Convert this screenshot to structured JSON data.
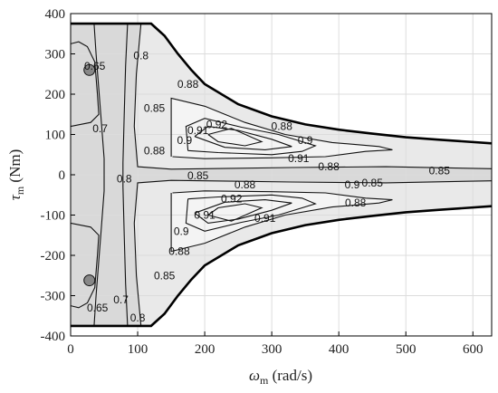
{
  "chart_data": {
    "type": "contour",
    "xlabel": "ω",
    "xlabel_sub": "m",
    "xlabel_unit": " (rad/s)",
    "ylabel": "τ",
    "ylabel_sub": "m",
    "ylabel_unit": " (Nm)",
    "xlim": [
      0,
      628
    ],
    "ylim": [
      -400,
      400
    ],
    "xticks": [
      0,
      100,
      200,
      300,
      400,
      500,
      600
    ],
    "yticks": [
      -400,
      -300,
      -200,
      -100,
      0,
      100,
      200,
      300,
      400
    ],
    "xtick_labels": [
      "0",
      "100",
      "200",
      "300",
      "400",
      "500",
      "600"
    ],
    "ytick_labels": [
      "-400",
      "-300",
      "-200",
      "-100",
      "0",
      "100",
      "200",
      "300",
      "400"
    ],
    "grid": true,
    "envelope": {
      "max_torque": 375,
      "corner_speed": 120,
      "upper": [
        [
          0,
          375
        ],
        [
          120,
          375
        ],
        [
          140,
          345
        ],
        [
          160,
          300
        ],
        [
          180,
          260
        ],
        [
          200,
          225
        ],
        [
          250,
          175
        ],
        [
          300,
          145
        ],
        [
          350,
          125
        ],
        [
          400,
          112
        ],
        [
          450,
          102
        ],
        [
          500,
          93
        ],
        [
          550,
          87
        ],
        [
          628,
          78
        ]
      ]
    },
    "fill_regions": [
      {
        "level": "<0.7",
        "color": "#a6a6a6",
        "polygon": [
          [
            0,
            375
          ],
          [
            35,
            375
          ],
          [
            38,
            300
          ],
          [
            45,
            150
          ],
          [
            50,
            40
          ],
          [
            50,
            -40
          ],
          [
            45,
            -150
          ],
          [
            38,
            -300
          ],
          [
            35,
            -375
          ],
          [
            0,
            -375
          ]
        ]
      },
      {
        "level": "0.7-0.8",
        "color": "#c2c2c2",
        "polygon": [
          [
            0,
            375
          ],
          [
            85,
            375
          ],
          [
            82,
            270
          ],
          [
            80,
            150
          ],
          [
            78,
            30
          ],
          [
            78,
            -30
          ],
          [
            80,
            -150
          ],
          [
            82,
            -270
          ],
          [
            85,
            -375
          ],
          [
            0,
            -375
          ]
        ]
      },
      {
        "level": "0.8-0.85",
        "color": "#d9d9d9",
        "polygon": [
          [
            0,
            375
          ],
          [
            120,
            375
          ],
          [
            140,
            345
          ],
          [
            160,
            300
          ],
          [
            180,
            260
          ],
          [
            200,
            225
          ],
          [
            250,
            175
          ],
          [
            300,
            145
          ],
          [
            350,
            125
          ],
          [
            400,
            112
          ],
          [
            450,
            102
          ],
          [
            500,
            93
          ],
          [
            550,
            87
          ],
          [
            628,
            78
          ],
          [
            628,
            -78
          ],
          [
            550,
            -87
          ],
          [
            500,
            -93
          ],
          [
            450,
            -102
          ],
          [
            400,
            -112
          ],
          [
            350,
            -125
          ],
          [
            300,
            -145
          ],
          [
            250,
            -175
          ],
          [
            200,
            -225
          ],
          [
            180,
            -260
          ],
          [
            160,
            -300
          ],
          [
            140,
            -345
          ],
          [
            120,
            -375
          ],
          [
            0,
            -375
          ]
        ]
      },
      {
        "level": "0.85-0.88",
        "color": "#e9e9e9",
        "polygon": [
          [
            105,
            375
          ],
          [
            120,
            375
          ],
          [
            140,
            345
          ],
          [
            160,
            300
          ],
          [
            180,
            260
          ],
          [
            200,
            225
          ],
          [
            250,
            175
          ],
          [
            300,
            145
          ],
          [
            350,
            125
          ],
          [
            400,
            112
          ],
          [
            450,
            102
          ],
          [
            500,
            93
          ],
          [
            550,
            87
          ],
          [
            628,
            78
          ],
          [
            628,
            15
          ],
          [
            470,
            20
          ],
          [
            330,
            18
          ],
          [
            240,
            16
          ],
          [
            150,
            14
          ],
          [
            100,
            20
          ],
          [
            95,
            120
          ],
          [
            98,
            250
          ]
        ]
      },
      {
        "level": "0.85-0.88",
        "color": "#e9e9e9",
        "polygon": [
          [
            105,
            -375
          ],
          [
            120,
            -375
          ],
          [
            140,
            -345
          ],
          [
            160,
            -300
          ],
          [
            180,
            -260
          ],
          [
            200,
            -225
          ],
          [
            250,
            -175
          ],
          [
            300,
            -145
          ],
          [
            350,
            -125
          ],
          [
            400,
            -112
          ],
          [
            450,
            -102
          ],
          [
            500,
            -93
          ],
          [
            550,
            -87
          ],
          [
            628,
            -78
          ],
          [
            628,
            -15
          ],
          [
            470,
            -20
          ],
          [
            330,
            -18
          ],
          [
            240,
            -16
          ],
          [
            150,
            -14
          ],
          [
            100,
            -20
          ],
          [
            95,
            -120
          ],
          [
            98,
            -250
          ]
        ]
      },
      {
        "level": ">0.88",
        "color": "#f4f4f4",
        "polygon": [
          [
            150,
            190
          ],
          [
            200,
            170
          ],
          [
            260,
            130
          ],
          [
            320,
            100
          ],
          [
            390,
            80
          ],
          [
            460,
            70
          ],
          [
            480,
            62
          ],
          [
            440,
            58
          ],
          [
            380,
            45
          ],
          [
            300,
            42
          ],
          [
            200,
            40
          ],
          [
            152,
            45
          ],
          [
            150,
            100
          ]
        ]
      },
      {
        "level": ">0.88",
        "color": "#f4f4f4",
        "polygon": [
          [
            150,
            -190
          ],
          [
            200,
            -170
          ],
          [
            260,
            -130
          ],
          [
            320,
            -100
          ],
          [
            390,
            -80
          ],
          [
            460,
            -70
          ],
          [
            480,
            -62
          ],
          [
            440,
            -58
          ],
          [
            380,
            -45
          ],
          [
            300,
            -42
          ],
          [
            200,
            -40
          ],
          [
            152,
            -45
          ],
          [
            150,
            -100
          ]
        ]
      }
    ],
    "contours": [
      {
        "level": "0.65",
        "points": [
          [
            0,
            325
          ],
          [
            12,
            330
          ],
          [
            25,
            318
          ],
          [
            36,
            280
          ],
          [
            40,
            200
          ],
          [
            42,
            150
          ],
          [
            30,
            130
          ],
          [
            0,
            120
          ]
        ]
      },
      {
        "level": "0.65",
        "points": [
          [
            0,
            -325
          ],
          [
            12,
            -330
          ],
          [
            25,
            -318
          ],
          [
            36,
            -280
          ],
          [
            40,
            -200
          ],
          [
            42,
            -150
          ],
          [
            30,
            -130
          ],
          [
            0,
            -120
          ]
        ]
      },
      {
        "level": "0.7",
        "points": [
          [
            35,
            375
          ],
          [
            38,
            300
          ],
          [
            45,
            150
          ],
          [
            50,
            40
          ],
          [
            50,
            -40
          ],
          [
            45,
            -150
          ],
          [
            38,
            -300
          ],
          [
            35,
            -375
          ]
        ]
      },
      {
        "level": "0.8",
        "points": [
          [
            85,
            375
          ],
          [
            82,
            270
          ],
          [
            80,
            150
          ],
          [
            78,
            30
          ],
          [
            78,
            -30
          ],
          [
            80,
            -150
          ],
          [
            82,
            -270
          ],
          [
            85,
            -375
          ]
        ]
      },
      {
        "level": "0.85",
        "points": [
          [
            105,
            375
          ],
          [
            98,
            250
          ],
          [
            95,
            120
          ],
          [
            100,
            20
          ],
          [
            150,
            14
          ],
          [
            240,
            16
          ],
          [
            330,
            18
          ],
          [
            470,
            20
          ],
          [
            628,
            15
          ]
        ]
      },
      {
        "level": "0.85",
        "points": [
          [
            105,
            -375
          ],
          [
            98,
            -250
          ],
          [
            95,
            -120
          ],
          [
            100,
            -20
          ],
          [
            150,
            -14
          ],
          [
            240,
            -16
          ],
          [
            330,
            -18
          ],
          [
            470,
            -20
          ],
          [
            628,
            -15
          ]
        ]
      },
      {
        "level": "0.88",
        "points": [
          [
            150,
            45
          ],
          [
            150,
            100
          ],
          [
            150,
            190
          ],
          [
            200,
            170
          ],
          [
            260,
            130
          ],
          [
            320,
            100
          ],
          [
            390,
            80
          ],
          [
            460,
            70
          ],
          [
            480,
            62
          ],
          [
            440,
            58
          ],
          [
            380,
            45
          ],
          [
            300,
            42
          ],
          [
            200,
            40
          ],
          [
            152,
            45
          ]
        ]
      },
      {
        "level": "0.88",
        "points": [
          [
            150,
            -45
          ],
          [
            150,
            -100
          ],
          [
            150,
            -190
          ],
          [
            200,
            -170
          ],
          [
            260,
            -130
          ],
          [
            320,
            -100
          ],
          [
            390,
            -80
          ],
          [
            460,
            -70
          ],
          [
            480,
            -62
          ],
          [
            440,
            -58
          ],
          [
            380,
            -45
          ],
          [
            300,
            -42
          ],
          [
            200,
            -40
          ],
          [
            152,
            -45
          ]
        ]
      },
      {
        "level": "0.9",
        "points": [
          [
            175,
            60
          ],
          [
            172,
            120
          ],
          [
            200,
            140
          ],
          [
            255,
            118
          ],
          [
            310,
            100
          ],
          [
            365,
            72
          ],
          [
            345,
            58
          ],
          [
            300,
            50
          ],
          [
            220,
            55
          ],
          [
            175,
            60
          ]
        ]
      },
      {
        "level": "0.9",
        "points": [
          [
            175,
            -60
          ],
          [
            172,
            -120
          ],
          [
            200,
            -140
          ],
          [
            255,
            -118
          ],
          [
            310,
            -100
          ],
          [
            365,
            -72
          ],
          [
            345,
            -58
          ],
          [
            300,
            -50
          ],
          [
            220,
            -55
          ],
          [
            175,
            -60
          ]
        ]
      },
      {
        "level": "0.91",
        "points": [
          [
            185,
            95
          ],
          [
            205,
            120
          ],
          [
            250,
            110
          ],
          [
            300,
            88
          ],
          [
            330,
            70
          ],
          [
            290,
            62
          ],
          [
            230,
            68
          ],
          [
            185,
            95
          ]
        ]
      },
      {
        "level": "0.91",
        "points": [
          [
            185,
            -95
          ],
          [
            205,
            -120
          ],
          [
            250,
            -110
          ],
          [
            300,
            -88
          ],
          [
            330,
            -70
          ],
          [
            290,
            -62
          ],
          [
            230,
            -68
          ],
          [
            185,
            -95
          ]
        ]
      },
      {
        "level": "0.92",
        "points": [
          [
            205,
            100
          ],
          [
            240,
            115
          ],
          [
            285,
            82
          ],
          [
            260,
            72
          ],
          [
            220,
            82
          ],
          [
            205,
            100
          ]
        ]
      },
      {
        "level": "0.92",
        "points": [
          [
            205,
            -100
          ],
          [
            240,
            -115
          ],
          [
            285,
            -82
          ],
          [
            260,
            -72
          ],
          [
            220,
            -82
          ],
          [
            205,
            -100
          ]
        ]
      }
    ],
    "contour_labels": [
      {
        "text": "0.65",
        "x": 36,
        "y": 270
      },
      {
        "text": "0.7",
        "x": 44,
        "y": 115
      },
      {
        "text": "0.8",
        "x": 105,
        "y": 295
      },
      {
        "text": "0.85",
        "x": 125,
        "y": 165
      },
      {
        "text": "0.88",
        "x": 125,
        "y": 60
      },
      {
        "text": "0.88",
        "x": 175,
        "y": 225
      },
      {
        "text": "0.9",
        "x": 170,
        "y": 85
      },
      {
        "text": "0.91",
        "x": 190,
        "y": 110
      },
      {
        "text": "0.92",
        "x": 218,
        "y": 125
      },
      {
        "text": "0.88",
        "x": 315,
        "y": 120
      },
      {
        "text": "0.9",
        "x": 350,
        "y": 85
      },
      {
        "text": "0.91",
        "x": 340,
        "y": 40
      },
      {
        "text": "0.88",
        "x": 385,
        "y": 20
      },
      {
        "text": "0.85",
        "x": 550,
        "y": 10
      },
      {
        "text": "0.8",
        "x": 80,
        "y": -10
      },
      {
        "text": "0.85",
        "x": 190,
        "y": -2
      },
      {
        "text": "0.88",
        "x": 260,
        "y": -25
      },
      {
        "text": "0.85",
        "x": 450,
        "y": -20
      },
      {
        "text": "0.88",
        "x": 425,
        "y": -70
      },
      {
        "text": "0.9",
        "x": 420,
        "y": -25
      },
      {
        "text": "0.92",
        "x": 240,
        "y": -60
      },
      {
        "text": "0.91",
        "x": 200,
        "y": -100
      },
      {
        "text": "0.91",
        "x": 290,
        "y": -108
      },
      {
        "text": "0.9",
        "x": 165,
        "y": -140
      },
      {
        "text": "0.88",
        "x": 162,
        "y": -190
      },
      {
        "text": "0.85",
        "x": 140,
        "y": -250
      },
      {
        "text": "0.7",
        "x": 75,
        "y": -310
      },
      {
        "text": "0.65",
        "x": 40,
        "y": -330
      },
      {
        "text": "0.8",
        "x": 100,
        "y": -355
      }
    ],
    "markers": [
      {
        "x": 28,
        "y": 260
      },
      {
        "x": 28,
        "y": -262
      }
    ]
  }
}
